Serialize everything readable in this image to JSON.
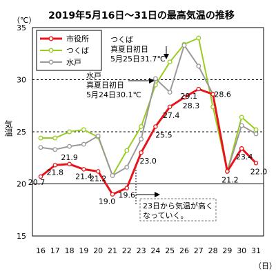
{
  "chart_data": {
    "type": "line",
    "title": "2019年5月16日～31日の最高気温の推移",
    "y_unit": "（℃）",
    "x_unit": "（日）",
    "ylabel": "気温",
    "ylim": [
      15,
      35
    ],
    "y_ticks": [
      "15",
      "20",
      "25",
      "30",
      "35"
    ],
    "dashed_gridlines": [
      25,
      30
    ],
    "x": [
      "16",
      "17",
      "18",
      "19",
      "20",
      "21",
      "22",
      "23",
      "24",
      "25",
      "26",
      "27",
      "28",
      "29",
      "30",
      "31"
    ],
    "legend_position": "top-left",
    "series": [
      {
        "name": "市役所",
        "color": "#e8141b",
        "values": [
          20.7,
          21.8,
          21.9,
          21.4,
          21.2,
          19.0,
          19.6,
          23.0,
          25.5,
          27.4,
          28.3,
          29.1,
          28.6,
          21.2,
          23.4,
          22.0
        ]
      },
      {
        "name": "つくば",
        "color": "#99cc22",
        "values": [
          24.4,
          24.4,
          25.0,
          25.2,
          24.5,
          20.8,
          23.2,
          25.5,
          29.5,
          31.7,
          33.4,
          34.0,
          27.4,
          21.2,
          26.4,
          25.2
        ]
      },
      {
        "name": "水戸",
        "color": "#999999",
        "values": [
          23.5,
          23.3,
          23.6,
          23.8,
          24.6,
          20.8,
          21.6,
          24.3,
          30.1,
          28.8,
          33.3,
          31.3,
          28.6,
          21.2,
          25.6,
          24.8
        ]
      }
    ],
    "data_labels": [
      "20.7",
      "21.8",
      "21.9",
      "21.4",
      "21.2",
      "19.0",
      "19.6",
      "23.0",
      "25.5",
      "27.4",
      "28.3",
      "29.1",
      "28.6",
      "21.2",
      "23.4",
      "22.0"
    ],
    "annotations": {
      "tsukuba": [
        "つくば",
        "真夏日初日",
        "5月25日31.7℃"
      ],
      "mito": [
        "水戸",
        "真夏日初日",
        "5月24日30.1℃"
      ],
      "note": [
        "23日から気温が高く",
        "なっていく。"
      ]
    }
  }
}
